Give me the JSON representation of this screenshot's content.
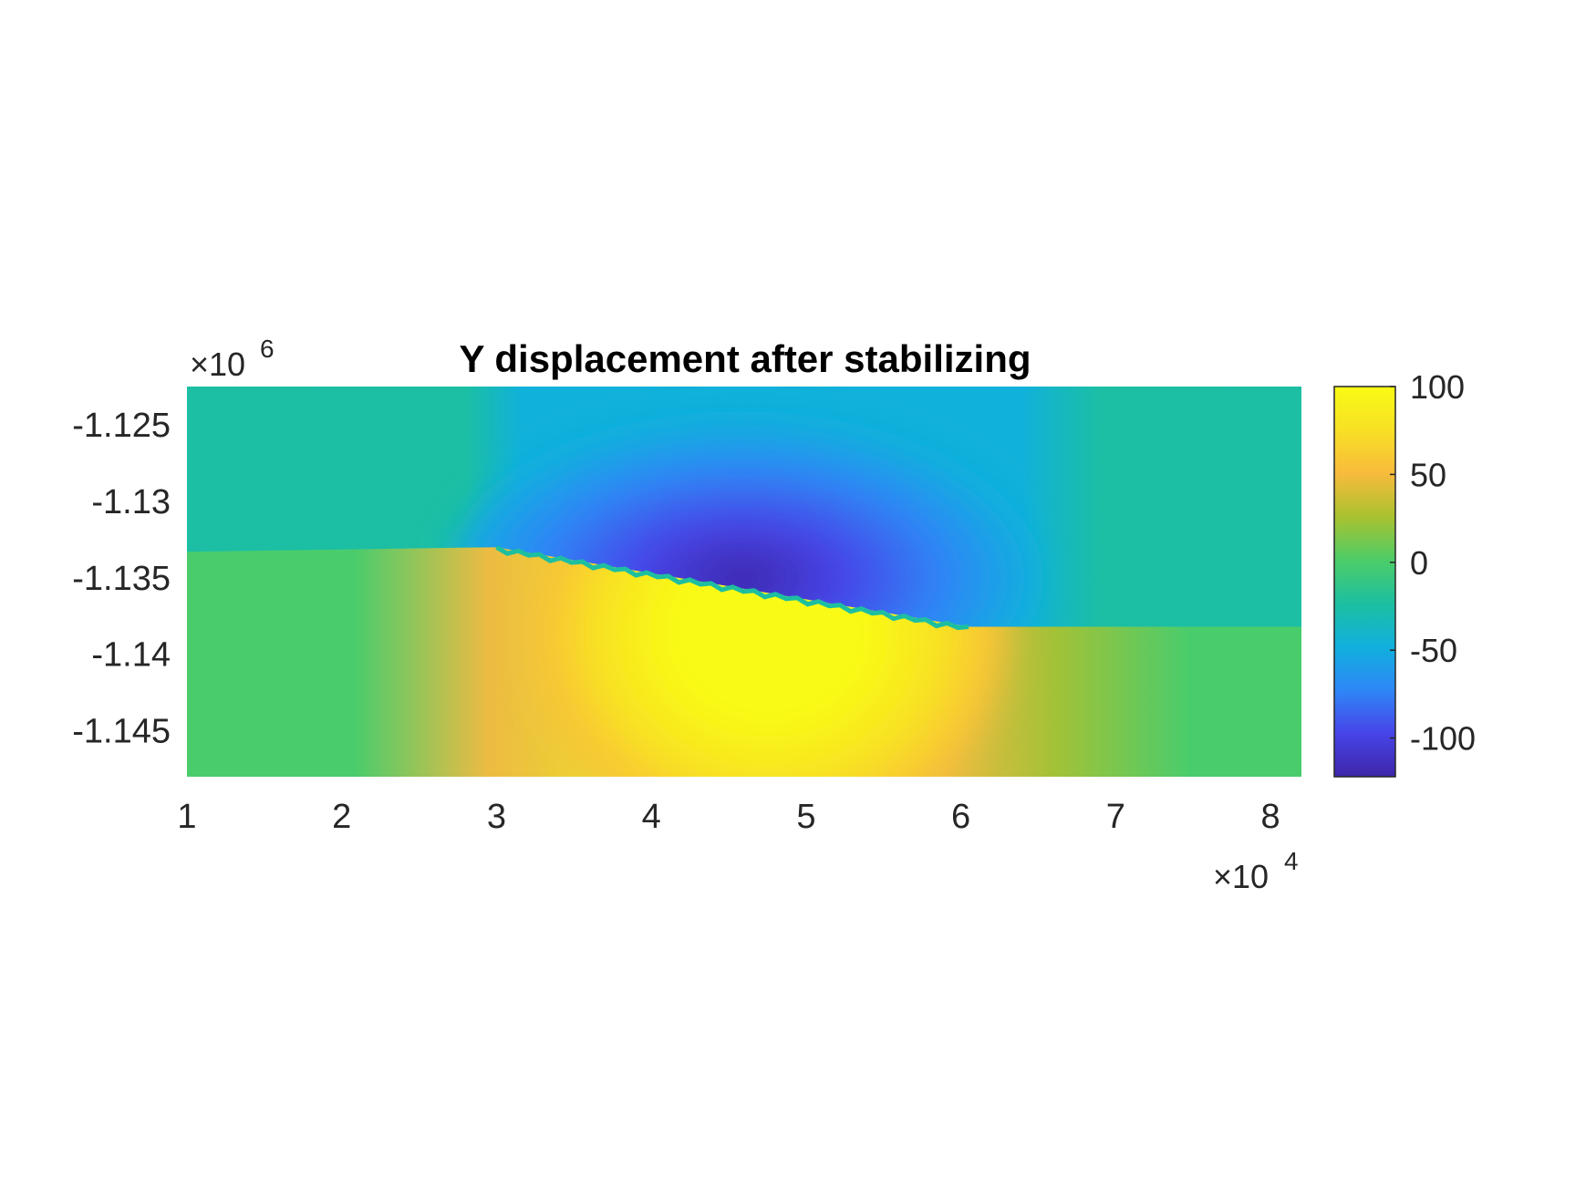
{
  "chart_data": {
    "type": "heatmap",
    "title": "Y displacement after stabilizing",
    "xlabel": "",
    "ylabel": "",
    "x_ticks": [
      "1",
      "2",
      "3",
      "4",
      "5",
      "6",
      "7",
      "8"
    ],
    "x_tick_values": [
      10000,
      20000,
      30000,
      40000,
      50000,
      60000,
      70000,
      80000
    ],
    "x_multiplier": {
      "base": "10",
      "exponent": "4"
    },
    "xlim": [
      10000,
      82000
    ],
    "y_ticks": [
      "-1.125",
      "-1.13",
      "-1.135",
      "-1.14",
      "-1.145"
    ],
    "y_tick_values": [
      -1125000,
      -1130000,
      -1135000,
      -1140000,
      -1145000
    ],
    "y_multiplier": {
      "base": "10",
      "exponent": "6"
    },
    "ylim": [
      -1148000,
      -1122500
    ],
    "colorbar": {
      "ticks": [
        "100",
        "50",
        "0",
        "-50",
        "-100"
      ],
      "tick_values": [
        100,
        50,
        0,
        -50,
        -100
      ],
      "clim": [
        -122,
        100
      ],
      "colormap": "parula",
      "colors": [
        "#3e26a8",
        "#4744e8",
        "#2e87f7",
        "#10b0dd",
        "#1dbfa0",
        "#4ccd68",
        "#a9c22f",
        "#f8bb3c",
        "#f8e024",
        "#f9fb15"
      ]
    },
    "fault": {
      "x_start": 30000,
      "y_start": -1133000,
      "x_end": 60500,
      "y_end": -1138200
    },
    "grid": false,
    "legend": "none"
  }
}
